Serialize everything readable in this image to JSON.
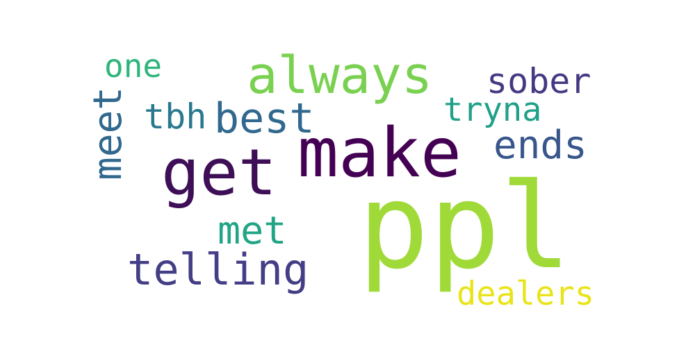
{
  "word_cloud": {
    "words": [
      {
        "text": "ppl",
        "color": "#a0da39"
      },
      {
        "text": "make",
        "color": "#440154"
      },
      {
        "text": "get",
        "color": "#3e0f56"
      },
      {
        "text": "always",
        "color": "#7ad151"
      },
      {
        "text": "telling",
        "color": "#433e85"
      },
      {
        "text": "dealers",
        "color": "#e8e419"
      },
      {
        "text": "best",
        "color": "#31688e"
      },
      {
        "text": "ends",
        "color": "#39568c"
      },
      {
        "text": "met",
        "color": "#21a585"
      },
      {
        "text": "sober",
        "color": "#443a83"
      },
      {
        "text": "tryna",
        "color": "#1fa088"
      },
      {
        "text": "tbh",
        "color": "#2a788e"
      },
      {
        "text": "one",
        "color": "#2fb47c"
      },
      {
        "text": "meet",
        "color": "#31688e"
      }
    ]
  }
}
